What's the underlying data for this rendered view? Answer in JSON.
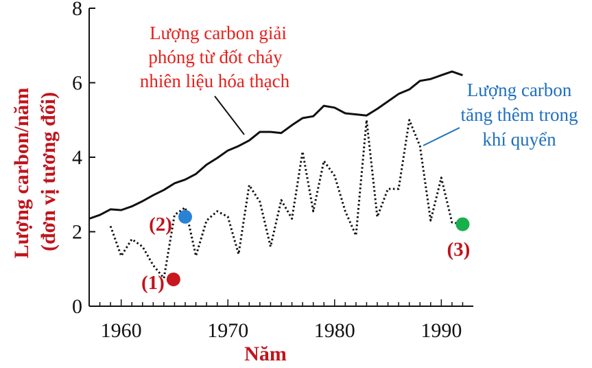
{
  "chart_data": {
    "type": "line",
    "xlabel": "Năm",
    "ylabel": "Lượng carbon/năm",
    "ylabel_sub": "(đơn vị tương đối)",
    "xlim": [
      1957,
      1993
    ],
    "ylim": [
      0,
      8
    ],
    "x_ticks": [
      1960,
      1970,
      1980,
      1990
    ],
    "y_ticks": [
      0,
      2,
      4,
      6,
      8
    ],
    "grid": false,
    "legend": "none",
    "series": [
      {
        "name": "Lượng carbon giải phóng từ đốt cháy nhiên liệu hóa thạch",
        "color": "#111111",
        "style": "solid",
        "x": [
          1957,
          1958,
          1959,
          1960,
          1961,
          1962,
          1963,
          1964,
          1965,
          1966,
          1967,
          1968,
          1969,
          1970,
          1971,
          1972,
          1973,
          1974,
          1975,
          1976,
          1977,
          1978,
          1979,
          1980,
          1981,
          1982,
          1983,
          1984,
          1985,
          1986,
          1987,
          1988,
          1989,
          1990,
          1991,
          1992
        ],
        "y": [
          2.35,
          2.45,
          2.6,
          2.58,
          2.68,
          2.82,
          2.98,
          3.12,
          3.3,
          3.4,
          3.55,
          3.8,
          3.98,
          4.18,
          4.3,
          4.45,
          4.68,
          4.68,
          4.65,
          4.86,
          5.05,
          5.1,
          5.38,
          5.33,
          5.18,
          5.15,
          5.12,
          5.3,
          5.5,
          5.7,
          5.82,
          6.05,
          6.1,
          6.2,
          6.3,
          6.2
        ]
      },
      {
        "name": "Lượng carbon tăng thêm trong khí quyển",
        "color": "#111111",
        "style": "dotted",
        "x": [
          1959,
          1960,
          1961,
          1962,
          1963,
          1964,
          1965,
          1966,
          1967,
          1968,
          1969,
          1970,
          1971,
          1972,
          1973,
          1974,
          1975,
          1976,
          1977,
          1978,
          1979,
          1980,
          1981,
          1982,
          1983,
          1984,
          1985,
          1986,
          1987,
          1988,
          1989,
          1990,
          1991,
          1992
        ],
        "y": [
          2.15,
          1.35,
          1.8,
          1.6,
          1.1,
          0.75,
          2.45,
          2.65,
          1.35,
          2.3,
          2.55,
          2.4,
          1.4,
          3.25,
          2.8,
          1.6,
          2.85,
          2.35,
          4.15,
          2.55,
          3.9,
          3.5,
          2.55,
          1.9,
          5.0,
          2.4,
          3.15,
          3.15,
          5.0,
          4.3,
          2.3,
          3.45,
          2.25,
          2.2
        ]
      }
    ],
    "annotations": [
      {
        "text": "Lượng carbon giải",
        "color": "#e3211c"
      },
      {
        "text": "phóng từ đốt cháy",
        "color": "#e3211c"
      },
      {
        "text": "nhiên liệu hóa thạch",
        "color": "#e3211c"
      },
      {
        "text": "Lượng carbon",
        "color": "#1f6fbf"
      },
      {
        "text": "tăng thêm trong",
        "color": "#1f6fbf"
      },
      {
        "text": "khí quyển",
        "color": "#1f6fbf"
      }
    ],
    "markers": [
      {
        "label": "(1)",
        "x": 1964.9,
        "y": 0.72,
        "color": "#c8171e"
      },
      {
        "label": "(2)",
        "x": 1966.0,
        "y": 2.4,
        "color": "#2a82d4"
      },
      {
        "label": "(3)",
        "x": 1992.0,
        "y": 2.2,
        "color": "#18b04a"
      }
    ]
  },
  "colors": {
    "axis_title": "#c0141c",
    "annotation_red": "#e3211c",
    "annotation_blue": "#1f6fbf",
    "marker_label": "#c0141c"
  }
}
